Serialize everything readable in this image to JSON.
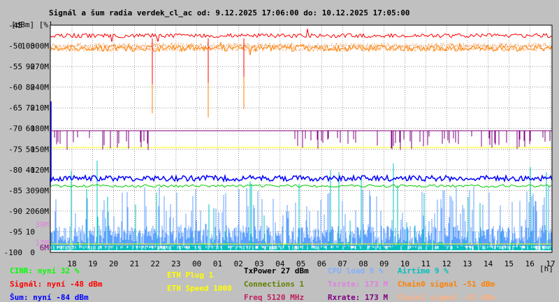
{
  "chart_data": {
    "type": "line",
    "title": "Signál a šum radia verdek_cl_ac od: 9.12.2025 17:06:00 do: 10.12.2025 17:05:00",
    "y_unit_label": "[dBm] [%]",
    "xlabel": "[h]",
    "x_ticks": [
      "18",
      "19",
      "20",
      "21",
      "22",
      "23",
      "00",
      "01",
      "02",
      "03",
      "04",
      "05",
      "06",
      "07",
      "08",
      "09",
      "10",
      "11",
      "12",
      "13",
      "14",
      "15",
      "16",
      "17"
    ],
    "y_left_range": [
      -100,
      -45
    ],
    "y_left_ticks": [
      "-45",
      "-50",
      "-55",
      "-60",
      "-65",
      "-70",
      "-75",
      "-80",
      "-85",
      "-90",
      "-95",
      "-100"
    ],
    "y_pct_ticks": [
      "100",
      "90",
      "80",
      "70",
      "60",
      "50",
      "40",
      "30",
      "20",
      "10",
      "0"
    ],
    "y_rate_ticks": [
      "300M",
      "270M",
      "240M",
      "210M",
      "180M",
      "150M",
      "120M",
      "90M",
      "60M"
    ],
    "y_rate_small_ticks": [
      "39M",
      "13M",
      "6M"
    ],
    "grid": true,
    "series": [
      {
        "name": "Signál",
        "color": "#ff0000",
        "approx_dbm": -48.5
      },
      {
        "name": "Chain0 signal",
        "color": "#ff8000",
        "approx_dbm": -51.5
      },
      {
        "name": "Chain1 signal",
        "color": "#ffb070",
        "approx_dbm": -51.5
      },
      {
        "name": "Šum",
        "color": "#0000ff",
        "approx_dbm": -84
      },
      {
        "name": "CINR",
        "color": "#00cc00",
        "approx_pct": 32
      },
      {
        "name": "Rxrate",
        "color": "#800080",
        "approx_mbps": 173
      },
      {
        "name": "Txrate",
        "color": "#e080e0",
        "approx_mbps": 173
      },
      {
        "name": "CPU load",
        "color": "#60a0ff",
        "approx_pct": 9
      },
      {
        "name": "Airtime",
        "color": "#00c0c0",
        "approx_pct": 9
      },
      {
        "name": "ETH Plug",
        "color": "#ffff00"
      },
      {
        "name": "ETH Speed",
        "color": "#ffff00"
      }
    ]
  },
  "legend": {
    "col1": [
      {
        "text": "CINR: nyní 32 %",
        "color": "#00ff00"
      },
      {
        "text": "Signál: nyní -48 dBm",
        "color": "#ff0000"
      },
      {
        "text": "Šum: nyní -84 dBm",
        "color": "#0000ff"
      }
    ],
    "col2": [
      {
        "text": "ETH Plug 1",
        "color": "#ffff00"
      },
      {
        "text": "ETH Speed 1000",
        "color": "#ffff00"
      }
    ],
    "col3": [
      {
        "text": "TxPower 27 dBm",
        "color": "#000000"
      },
      {
        "text": "Connections 1",
        "color": "#608000"
      },
      {
        "text": "Freq 5120 MHz",
        "color": "#c02060"
      }
    ],
    "col4": [
      {
        "text": "CPU load 9 %",
        "color": "#80b0ff"
      },
      {
        "text": "Txrate: 173 M",
        "color": "#e080e0"
      },
      {
        "text": "Rxrate: 173 M",
        "color": "#800080"
      }
    ],
    "col5": [
      {
        "text": "Airtime 9 %",
        "color": "#00c0c0"
      },
      {
        "text": "Chain0 signal -51 dBm",
        "color": "#ff8000"
      },
      {
        "text": "Chain1 signal -52 dBm",
        "color": "#ffb080"
      }
    ]
  }
}
